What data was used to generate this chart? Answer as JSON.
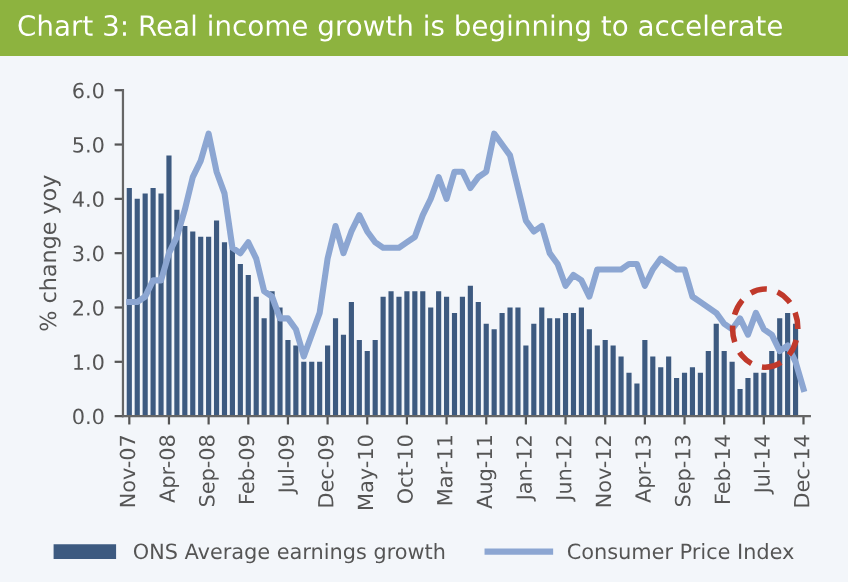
{
  "chart_data": {
    "type": "bar",
    "title": "Chart 3: Real income growth is beginning to accelerate",
    "ylabel": "% change yoy",
    "categories": [
      "Nov-07",
      null,
      null,
      null,
      null,
      "Apr-08",
      null,
      null,
      null,
      null,
      "Sep-08",
      null,
      null,
      null,
      null,
      "Feb-09",
      null,
      null,
      null,
      null,
      "Jul-09",
      null,
      null,
      null,
      null,
      "Dec-09",
      null,
      null,
      null,
      null,
      "May-10",
      null,
      null,
      null,
      null,
      "Oct-10",
      null,
      null,
      null,
      null,
      "Mar-11",
      null,
      null,
      null,
      null,
      "Aug-11",
      null,
      null,
      null,
      null,
      "Jan-12",
      null,
      null,
      null,
      null,
      "Jun-12",
      null,
      null,
      null,
      null,
      "Nov-12",
      null,
      null,
      null,
      null,
      "Apr-13",
      null,
      null,
      null,
      null,
      "Sep-13",
      null,
      null,
      null,
      null,
      "Feb-14",
      null,
      null,
      null,
      null,
      "Jul-14",
      null,
      null,
      null,
      null,
      "Dec-14"
    ],
    "series": [
      {
        "name": "ONS Average earnings growth",
        "color": "#3d5a80",
        "values": [
          4.2,
          4.0,
          4.1,
          4.2,
          4.1,
          4.8,
          3.8,
          3.5,
          3.4,
          3.3,
          3.3,
          3.6,
          3.2,
          3.1,
          2.8,
          2.6,
          2.2,
          1.8,
          2.3,
          2.0,
          1.4,
          1.3,
          1.0,
          1.0,
          1.0,
          1.3,
          1.8,
          1.5,
          2.1,
          1.4,
          1.2,
          1.4,
          2.2,
          2.3,
          2.2,
          2.3,
          2.3,
          2.3,
          2.0,
          2.3,
          2.2,
          1.9,
          2.2,
          2.4,
          2.1,
          1.7,
          1.6,
          1.9,
          2.0,
          2.0,
          1.3,
          1.7,
          2.0,
          1.8,
          1.8,
          1.9,
          1.9,
          2.0,
          1.6,
          1.3,
          1.4,
          1.3,
          1.1,
          0.8,
          0.6,
          1.4,
          1.1,
          0.9,
          1.1,
          0.7,
          0.8,
          0.9,
          0.8,
          1.2,
          1.7,
          1.2,
          1.0,
          0.5,
          0.7,
          0.8,
          0.8,
          1.2,
          1.8,
          1.9,
          1.7,
          null
        ]
      },
      {
        "name": "Consumer Price Index",
        "type": "line",
        "color": "#8ca6d2",
        "values": [
          2.1,
          2.1,
          2.2,
          2.5,
          2.5,
          3.0,
          3.3,
          3.8,
          4.4,
          4.7,
          5.2,
          4.5,
          4.1,
          3.1,
          3.0,
          3.2,
          2.9,
          2.3,
          2.2,
          1.8,
          1.8,
          1.6,
          1.1,
          1.5,
          1.9,
          2.9,
          3.5,
          3.0,
          3.4,
          3.7,
          3.4,
          3.2,
          3.1,
          3.1,
          3.1,
          3.2,
          3.3,
          3.7,
          4.0,
          4.4,
          4.0,
          4.5,
          4.5,
          4.2,
          4.4,
          4.5,
          5.2,
          5.0,
          4.8,
          4.2,
          3.6,
          3.4,
          3.5,
          3.0,
          2.8,
          2.4,
          2.6,
          2.5,
          2.2,
          2.7,
          2.7,
          2.7,
          2.7,
          2.8,
          2.8,
          2.4,
          2.7,
          2.9,
          2.8,
          2.7,
          2.7,
          2.2,
          2.1,
          2.0,
          1.9,
          1.7,
          1.6,
          1.8,
          1.5,
          1.9,
          1.6,
          1.5,
          1.2,
          1.3,
          1.0,
          0.5
        ]
      }
    ],
    "ylim": [
      0,
      6
    ],
    "yticks": [
      {
        "value": 0,
        "label": "0.0"
      },
      {
        "value": 1,
        "label": "1.0"
      },
      {
        "value": 2,
        "label": "2.0"
      },
      {
        "value": 3,
        "label": "3.0"
      },
      {
        "value": 4,
        "label": "4.0"
      },
      {
        "value": 5,
        "label": "5.0"
      },
      {
        "value": 6,
        "label": "6.0"
      }
    ],
    "grid": false,
    "legend": "bottom",
    "marker": "none",
    "line_style": "solid"
  }
}
